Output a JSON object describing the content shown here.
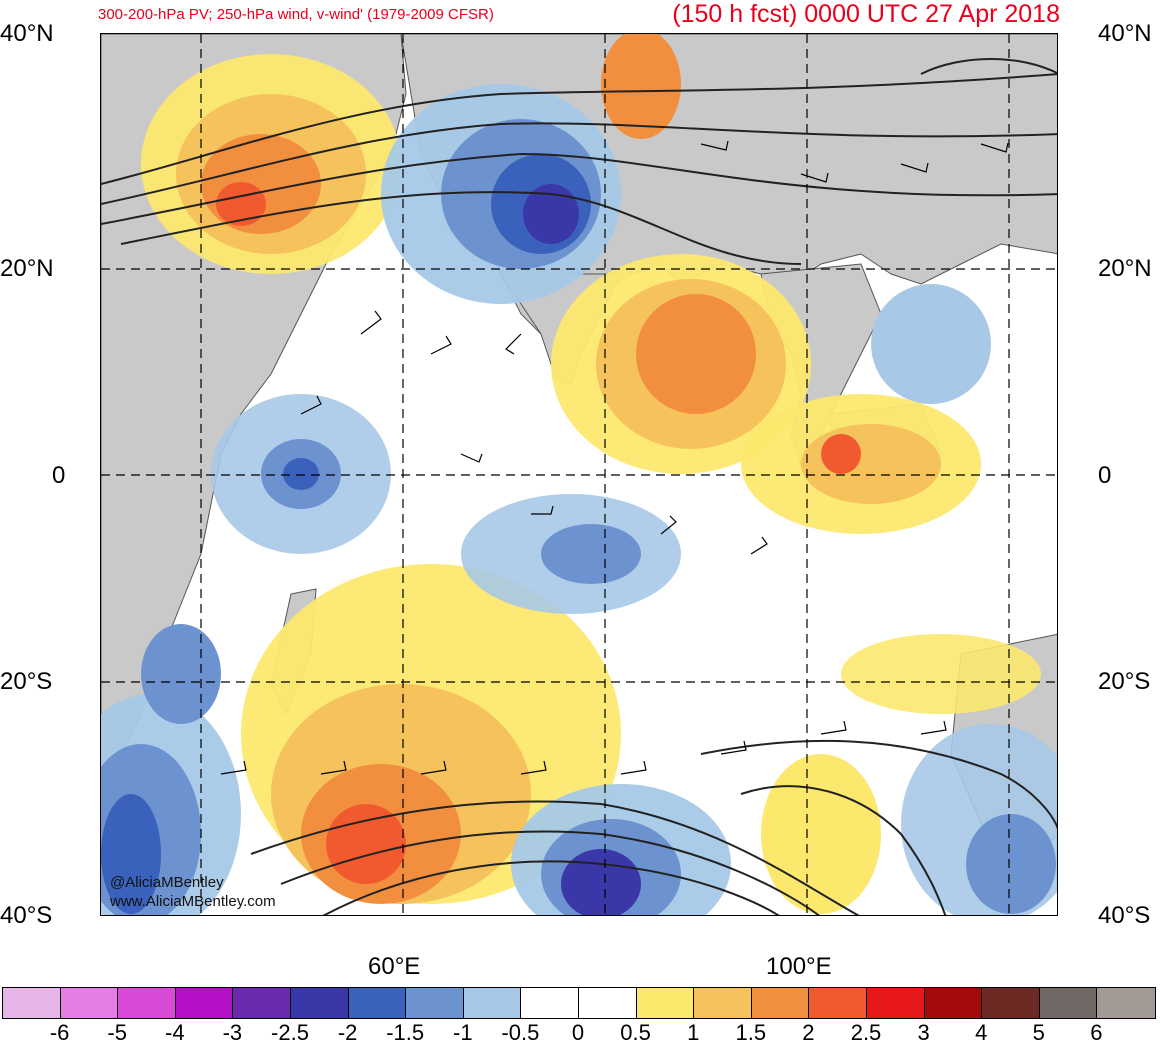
{
  "header": {
    "subtitle": "300-200-hPa PV; 250-hPa wind, v-wind' (1979-2009 CFSR)",
    "title": "(150 h fcst) 0000 UTC 27 Apr 2018"
  },
  "lat_labels": {
    "n40": "40°N",
    "n20": "20°N",
    "eq": "0",
    "s20": "20°S",
    "s40": "40°S"
  },
  "lon_labels": {
    "e60": "60°E",
    "e100": "100°E"
  },
  "credits": {
    "twitter": "@AliciaMBentley",
    "website": "www.AliciaMBentley.com"
  },
  "colorbar": {
    "colors": [
      "#e8b5e8",
      "#e47ee4",
      "#d64ad6",
      "#b410c8",
      "#6a2aad",
      "#3a38a8",
      "#3a62bc",
      "#6c93cf",
      "#a7c9e7",
      "#ffffff",
      "#ffffff",
      "#fde86e",
      "#f5c25c",
      "#f28f3e",
      "#f15a2e",
      "#e8181a",
      "#a30b0b",
      "#6b2a23",
      "#716865",
      "#a39a96"
    ],
    "labels": [
      "-6",
      "-5",
      "-4",
      "-3",
      "-2.5",
      "-2",
      "-1.5",
      "-1",
      "-0.5",
      "0",
      "0.5",
      "1",
      "1.5",
      "2",
      "2.5",
      "3",
      "4",
      "5",
      "6"
    ]
  }
}
